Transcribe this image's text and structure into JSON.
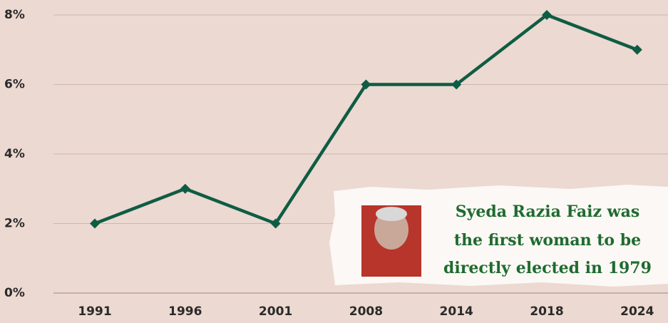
{
  "chart_data": {
    "type": "line",
    "categories": [
      "1991",
      "1996",
      "2001",
      "2008",
      "2014",
      "2018",
      "2024"
    ],
    "values": [
      2,
      3,
      2,
      6,
      6,
      8,
      7
    ],
    "color": "#0f5c44",
    "ylim": [
      0,
      8
    ],
    "yticks": [
      {
        "value": 0,
        "label": "0%"
      },
      {
        "value": 2,
        "label": "2%"
      },
      {
        "value": 4,
        "label": "4%"
      },
      {
        "value": 6,
        "label": "6%"
      },
      {
        "value": 8,
        "label": "8%"
      }
    ],
    "grid": true,
    "annotation": [
      "Syeda Razia Faiz was",
      "the first woman to be",
      "directly elected in 1979"
    ]
  }
}
